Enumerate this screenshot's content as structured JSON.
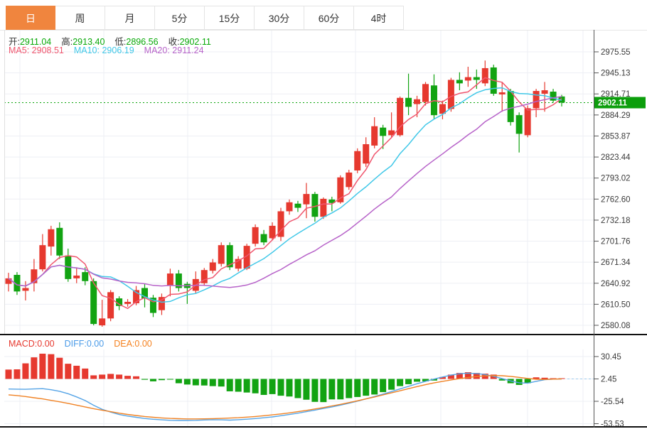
{
  "header": {
    "tabs": [
      {
        "label": "日",
        "active": true
      },
      {
        "label": "周",
        "active": false
      },
      {
        "label": "月",
        "active": false
      },
      {
        "label": "5分",
        "active": false
      },
      {
        "label": "15分",
        "active": false
      },
      {
        "label": "30分",
        "active": false
      },
      {
        "label": "60分",
        "active": false
      },
      {
        "label": "4时",
        "active": false
      }
    ],
    "active_tab_color": "#f0853e"
  },
  "legend": {
    "ohlc_color": "#09a909",
    "ohlc": [
      {
        "label": "开:",
        "value": "2911.04"
      },
      {
        "label": "高:",
        "value": "2913.40"
      },
      {
        "label": "低:",
        "value": "2896.56"
      },
      {
        "label": "收:",
        "value": "2902.11"
      }
    ],
    "ma": [
      {
        "label": "MA5:",
        "value": "2908.51",
        "color": "#f0566e"
      },
      {
        "label": "MA10:",
        "value": "2906.19",
        "color": "#41c8e8"
      },
      {
        "label": "MA20:",
        "value": "2911.24",
        "color": "#b763c9"
      }
    ]
  },
  "macd_legend": [
    {
      "label": "MACD:",
      "value": "0.00",
      "color": "#e6392f"
    },
    {
      "label": "DIFF:",
      "value": "0.00",
      "color": "#4a9be8"
    },
    {
      "label": "DEA:",
      "value": "0.00",
      "color": "#f5821f"
    }
  ],
  "chart_data": {
    "type": "candlestick+macd",
    "price_axis": {
      "ticks": [
        "2975.55",
        "2945.13",
        "2914.71",
        "2884.29",
        "2853.87",
        "2823.44",
        "2793.02",
        "2762.60",
        "2732.18",
        "2701.76",
        "2671.34",
        "2640.92",
        "2610.50",
        "2580.08"
      ],
      "max": 2975.55,
      "min": 2580.08,
      "current": 2902.11,
      "current_label": "2902.11"
    },
    "candles_format": [
      "open",
      "high",
      "low",
      "close"
    ],
    "candles": [
      [
        2640,
        2656,
        2629,
        2648
      ],
      [
        2653,
        2657,
        2624,
        2629
      ],
      [
        2630,
        2644,
        2616,
        2634
      ],
      [
        2641,
        2676,
        2629,
        2661
      ],
      [
        2661,
        2712,
        2658,
        2696
      ],
      [
        2694,
        2724,
        2681,
        2719
      ],
      [
        2721,
        2729,
        2676,
        2681
      ],
      [
        2681,
        2691,
        2643,
        2647
      ],
      [
        2648,
        2664,
        2641,
        2652
      ],
      [
        2657,
        2664,
        2638,
        2644
      ],
      [
        2644,
        2648,
        2580,
        2582
      ],
      [
        2580,
        2617,
        2578,
        2590
      ],
      [
        2590,
        2631,
        2586,
        2628
      ],
      [
        2619,
        2622,
        2602,
        2608
      ],
      [
        2611,
        2618,
        2607,
        2614
      ],
      [
        2612,
        2637,
        2609,
        2631
      ],
      [
        2634,
        2640,
        2606,
        2619
      ],
      [
        2620,
        2624,
        2592,
        2598
      ],
      [
        2602,
        2626,
        2595,
        2621
      ],
      [
        2637,
        2662,
        2622,
        2655
      ],
      [
        2655,
        2660,
        2629,
        2634
      ],
      [
        2640,
        2643,
        2611,
        2634
      ],
      [
        2630,
        2658,
        2626,
        2647
      ],
      [
        2641,
        2663,
        2637,
        2660
      ],
      [
        2659,
        2676,
        2655,
        2671
      ],
      [
        2669,
        2700,
        2665,
        2696
      ],
      [
        2696,
        2700,
        2660,
        2664
      ],
      [
        2662,
        2680,
        2658,
        2676
      ],
      [
        2662,
        2698,
        2660,
        2695
      ],
      [
        2698,
        2726,
        2694,
        2722
      ],
      [
        2712,
        2718,
        2696,
        2700
      ],
      [
        2706,
        2729,
        2703,
        2724
      ],
      [
        2708,
        2750,
        2702,
        2745
      ],
      [
        2745,
        2762,
        2740,
        2758
      ],
      [
        2756,
        2760,
        2744,
        2750
      ],
      [
        2755,
        2786,
        2735,
        2770
      ],
      [
        2770,
        2773,
        2730,
        2737
      ],
      [
        2737,
        2765,
        2734,
        2763
      ],
      [
        2762,
        2766,
        2745,
        2757
      ],
      [
        2758,
        2797,
        2756,
        2794
      ],
      [
        2780,
        2805,
        2776,
        2801
      ],
      [
        2804,
        2836,
        2800,
        2832
      ],
      [
        2814,
        2852,
        2809,
        2842
      ],
      [
        2840,
        2881,
        2836,
        2868
      ],
      [
        2866,
        2870,
        2835,
        2854
      ],
      [
        2855,
        2888,
        2852,
        2862
      ],
      [
        2855,
        2911,
        2853,
        2909
      ],
      [
        2909,
        2944,
        2884,
        2896
      ],
      [
        2900,
        2912,
        2881,
        2907
      ],
      [
        2903,
        2932,
        2898,
        2929
      ],
      [
        2927,
        2943,
        2879,
        2884
      ],
      [
        2886,
        2905,
        2878,
        2900
      ],
      [
        2893,
        2938,
        2889,
        2935
      ],
      [
        2935,
        2946,
        2920,
        2930
      ],
      [
        2934,
        2954,
        2925,
        2939
      ],
      [
        2939,
        2950,
        2922,
        2935
      ],
      [
        2930,
        2963,
        2926,
        2952
      ],
      [
        2953,
        2957,
        2912,
        2915
      ],
      [
        2914,
        2932,
        2889,
        2917
      ],
      [
        2919,
        2922,
        2869,
        2874
      ],
      [
        2884,
        2888,
        2830,
        2857
      ],
      [
        2855,
        2898,
        2852,
        2894
      ],
      [
        2894,
        2922,
        2881,
        2919
      ],
      [
        2915,
        2932,
        2889,
        2920
      ],
      [
        2918,
        2922,
        2902,
        2905
      ],
      [
        2911.04,
        2913.4,
        2896.56,
        2902.11
      ]
    ],
    "ma_windows": [
      5,
      10,
      20
    ],
    "ma_colors": [
      "#f0566e",
      "#41c8e8",
      "#b763c9"
    ],
    "macd": {
      "ticks": [
        "30.45",
        "2.45",
        "-25.54",
        "-53.53"
      ],
      "hist": [
        11.7,
        12.0,
        19.5,
        27.0,
        31.6,
        31.0,
        26.5,
        19.0,
        16.5,
        13.0,
        4.5,
        5.4,
        6.3,
        5.4,
        3.9,
        3.3,
        -1.0,
        -3.0,
        -1.5,
        -0.8,
        -5.4,
        -7.0,
        -8.0,
        -8.2,
        -9.0,
        -9.5,
        -15.5,
        -16.0,
        -17.0,
        -18.0,
        -20.0,
        -19.0,
        -21.0,
        -22.0,
        -24.0,
        -26.0,
        -28.7,
        -29.0,
        -25.6,
        -25.6,
        -24.0,
        -22.6,
        -21.0,
        -19.5,
        -16.5,
        -13.5,
        -9.0,
        -6.6,
        -3.5,
        -3.0,
        -2.0,
        2.4,
        5.4,
        7.5,
        8.4,
        7.5,
        6.6,
        5.4,
        -2.0,
        -5.4,
        -7.5,
        -5.4,
        2.0,
        1.5,
        0.5,
        0.0
      ],
      "diff": [
        -12.6,
        -12.8,
        -13.0,
        -12.5,
        -12.2,
        -13.5,
        -15.5,
        -18.5,
        -22.5,
        -27,
        -33,
        -38,
        -41.5,
        -44.5,
        -46.5,
        -48,
        -49.5,
        -50.5,
        -51.2,
        -51.8,
        -52,
        -52,
        -51.8,
        -51.4,
        -51,
        -51.2,
        -51.5,
        -51,
        -50.4,
        -49.6,
        -48.6,
        -47.5,
        -46,
        -44.5,
        -42.8,
        -41,
        -39,
        -37,
        -35,
        -32.8,
        -30.4,
        -27.8,
        -25,
        -22,
        -19,
        -15.8,
        -12.5,
        -9.2,
        -6,
        -3,
        -0.2,
        2.4,
        4.8,
        6.5,
        7.2,
        6.8,
        5.5,
        3.2,
        0.5,
        -2.5,
        -4.8,
        -5.2,
        -3,
        -1,
        -0.3,
        0
      ],
      "dea": [
        -19.9,
        -20.8,
        -22,
        -23.5,
        -25,
        -26.8,
        -28.6,
        -30.6,
        -32.8,
        -35,
        -37.2,
        -39.2,
        -41,
        -42.8,
        -44.4,
        -45.8,
        -47,
        -48,
        -48.8,
        -49.4,
        -49.8,
        -50,
        -50,
        -49.9,
        -49.7,
        -49.4,
        -49,
        -48.5,
        -47.8,
        -47,
        -46,
        -45,
        -43.8,
        -42.5,
        -41,
        -39.4,
        -37.6,
        -35.8,
        -33.8,
        -31.8,
        -29.6,
        -27.4,
        -25,
        -22.6,
        -20,
        -17.4,
        -14.8,
        -12.2,
        -9.6,
        -7.2,
        -5,
        -3,
        -1.2,
        0.4,
        1.8,
        3,
        3.8,
        4.2,
        4,
        3.2,
        2,
        0.6,
        -0.4,
        -0.6,
        -0.3,
        0
      ]
    },
    "colors": {
      "up": "#e6392f",
      "down": "#12a312",
      "grid": "#edeff4",
      "axis_line": "#555555",
      "axis_text": "#3a3a3a",
      "divider": "#111111",
      "price_line": "#0aa30a",
      "price_tag_bg": "#0c9e0c",
      "price_tag_text": "#ffffff",
      "diff_line": "#55a4e6",
      "dea_line": "#f08224",
      "zero_dash": "#9fcbee"
    }
  }
}
